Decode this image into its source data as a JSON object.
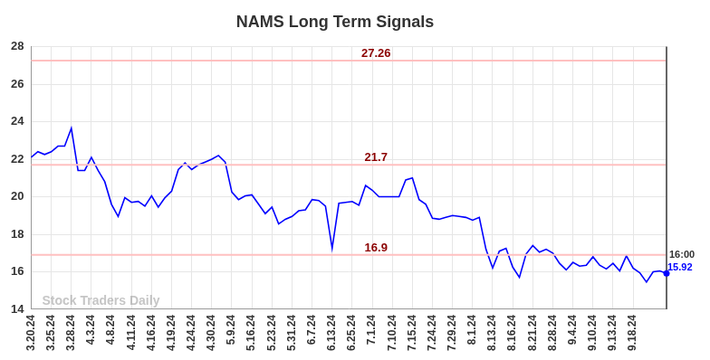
{
  "chart_data": {
    "type": "line",
    "title": "NAMS Long Term Signals",
    "watermark": "Stock Traders Daily",
    "end_annotation": "16:00",
    "color": "#0000ff",
    "categories": [
      "3.20.24",
      null,
      null,
      "3.25.24",
      null,
      null,
      "3.28.24",
      null,
      null,
      "4.3.24",
      null,
      null,
      "4.8.24",
      null,
      null,
      "4.11.24",
      null,
      null,
      "4.16.24",
      null,
      null,
      "4.19.24",
      null,
      null,
      "4.24.24",
      null,
      null,
      "4.30.24",
      null,
      null,
      "5.9.24",
      null,
      null,
      "5.16.24",
      null,
      null,
      "5.23.24",
      null,
      null,
      "5.31.24",
      null,
      null,
      "6.7.24",
      null,
      null,
      "6.13.24",
      null,
      null,
      "6.25.24",
      null,
      null,
      "7.1.24",
      null,
      null,
      "7.10.24",
      null,
      null,
      "7.15.24",
      null,
      null,
      "7.24.24",
      null,
      null,
      "7.29.24",
      null,
      null,
      "8.1.24",
      null,
      null,
      "8.13.24",
      null,
      null,
      "8.16.24",
      null,
      null,
      "8.21.24",
      null,
      null,
      "8.28.24",
      null,
      null,
      "9.4.24",
      null,
      null,
      "9.10.24",
      null,
      null,
      "9.13.24",
      null,
      null,
      "9.18.24",
      null,
      null,
      null,
      null,
      null
    ],
    "values": [
      22.1,
      22.4,
      22.25,
      22.4,
      22.7,
      22.7,
      23.65,
      21.4,
      21.4,
      22.1,
      21.4,
      20.8,
      19.6,
      18.95,
      19.95,
      19.7,
      19.75,
      19.5,
      20.05,
      19.45,
      19.95,
      20.3,
      21.45,
      21.8,
      21.45,
      21.7,
      21.85,
      22.0,
      22.2,
      21.85,
      20.25,
      19.85,
      20.05,
      20.1,
      19.6,
      19.1,
      19.45,
      18.55,
      18.8,
      18.95,
      19.25,
      19.3,
      19.85,
      19.8,
      19.5,
      17.25,
      19.65,
      19.7,
      19.75,
      19.55,
      20.6,
      20.35,
      20.0,
      20.0,
      20.0,
      20.0,
      20.9,
      21.0,
      19.85,
      19.6,
      18.85,
      18.8,
      18.9,
      19.0,
      18.95,
      18.9,
      18.75,
      18.9,
      17.2,
      16.2,
      17.1,
      17.25,
      16.25,
      15.7,
      16.95,
      17.4,
      17.05,
      17.2,
      17.0,
      16.45,
      16.1,
      16.5,
      16.3,
      16.35,
      16.8,
      16.35,
      16.15,
      16.45,
      16.05,
      16.85,
      16.2,
      15.95,
      15.45,
      16.0,
      16.05,
      15.92
    ],
    "reference_lines": [
      27.26,
      21.7,
      16.9
    ],
    "ylim": [
      14,
      28
    ],
    "yticks": [
      14,
      16,
      18,
      20,
      22,
      24,
      26,
      28
    ],
    "grid": true
  }
}
